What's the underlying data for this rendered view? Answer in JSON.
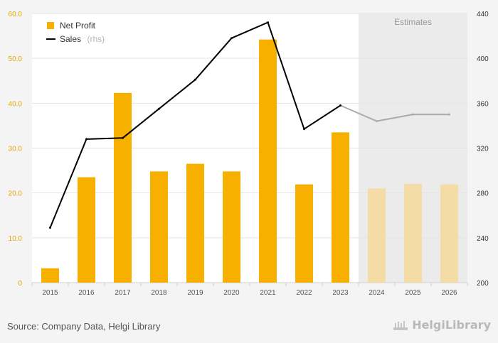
{
  "chart_data": {
    "type": "bar",
    "categories": [
      "2015",
      "2016",
      "2017",
      "2018",
      "2019",
      "2020",
      "2021",
      "2022",
      "2023",
      "2024",
      "2025",
      "2026"
    ],
    "series": [
      {
        "name": "Net Profit",
        "type": "bar",
        "axis": "left",
        "values": [
          3.2,
          23.5,
          42.3,
          24.8,
          26.5,
          24.8,
          54.2,
          21.9,
          33.5,
          21.0,
          22.0,
          21.9
        ],
        "estimate_from_index": 9
      },
      {
        "name": "Sales",
        "type": "line",
        "axis": "right",
        "values": [
          249,
          328,
          329,
          355,
          381,
          418,
          432,
          337,
          358,
          344,
          350,
          350
        ],
        "estimate_from_index": 8
      }
    ],
    "legend": {
      "bar_label": "Net Profit",
      "line_label": "Sales",
      "line_suffix": "(rhs)",
      "placement": "top-left"
    },
    "estimates_label": "Estimates",
    "estimates_start_category": "2024",
    "y_left": {
      "lim": [
        0,
        60
      ],
      "ticks": [
        "0",
        "10.0",
        "20.0",
        "30.0",
        "40.0",
        "50.0",
        "60.0"
      ],
      "tick_values": [
        0,
        10,
        20,
        30,
        40,
        50,
        60
      ]
    },
    "y_right": {
      "lim": [
        200,
        440
      ],
      "ticks": [
        "200",
        "240",
        "280",
        "320",
        "360",
        "400",
        "440"
      ],
      "tick_values": [
        200,
        240,
        280,
        320,
        360,
        400,
        440
      ]
    },
    "grid": true,
    "colors": {
      "bar": "#f7b000",
      "bar_estimate": "#f3dca6",
      "line": "#000000",
      "line_estimate": "#aaaaaa",
      "estimate_band": "#ebebeb",
      "left_axis_text": "#e3a600"
    }
  },
  "footer": {
    "source": "Source: Company Data, Helgi Library",
    "brand": "HelgiLibrary"
  }
}
